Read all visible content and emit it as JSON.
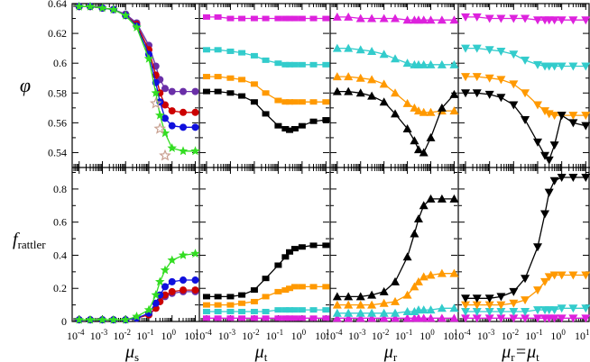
{
  "figure": {
    "ylabel_top": "φ",
    "ylabel_bottom_main": "f",
    "ylabel_bottom_sub": "rattler",
    "xlabels": [
      {
        "main": "μ",
        "sub": "s",
        "suffix": ""
      },
      {
        "main": "μ",
        "sub": "t",
        "suffix": ""
      },
      {
        "main": "μ",
        "sub": "r",
        "suffix": ""
      },
      {
        "main": "μ",
        "sub": "r",
        "suffix": "=μ",
        "sub2": "t"
      }
    ],
    "xtick_labels": [
      "10-4",
      "10-3",
      "10-2",
      "10-1",
      "100",
      "101"
    ],
    "ytick_top": [
      "0.54",
      "0.56",
      "0.58",
      "0.6",
      "0.62",
      "0.64"
    ],
    "ytick_bottom": [
      "0",
      "0.2",
      "0.4",
      "0.6",
      "0.8"
    ]
  },
  "chart_data": {
    "type": "line",
    "xscale": "log",
    "xlim": [
      5e-05,
      15
    ],
    "x": [
      0.0001,
      0.0003,
      0.001,
      0.003,
      0.01,
      0.03,
      0.1,
      0.2,
      0.3,
      0.5,
      1,
      3,
      10
    ],
    "colors": {
      "purple": "#6a2fa8",
      "red": "#cc0000",
      "blue": "#1010dd",
      "green": "#33dd22",
      "black": "#000000",
      "orange": "#ff9900",
      "cyan": "#33cccc",
      "magenta": "#dd22dd",
      "tan": "#c8a090"
    },
    "panels": [
      {
        "top": {
          "ylim": [
            0.53,
            0.64
          ],
          "series": [
            {
              "color": "purple",
              "marker": "circle",
              "values": [
                0.638,
                0.638,
                0.637,
                0.636,
                0.633,
                0.627,
                0.612,
                0.598,
                0.589,
                0.583,
                0.581,
                0.581,
                0.581
              ]
            },
            {
              "color": "red",
              "marker": "circle",
              "values": [
                0.638,
                0.638,
                0.637,
                0.636,
                0.632,
                0.626,
                0.609,
                0.592,
                0.58,
                0.572,
                0.568,
                0.567,
                0.567
              ]
            },
            {
              "color": "blue",
              "marker": "circle",
              "values": [
                0.638,
                0.638,
                0.637,
                0.636,
                0.632,
                0.625,
                0.606,
                0.587,
                0.574,
                0.563,
                0.558,
                0.557,
                0.557
              ]
            },
            {
              "color": "green",
              "marker": "star",
              "values": [
                0.638,
                0.638,
                0.637,
                0.636,
                0.632,
                0.624,
                0.603,
                0.58,
                0.565,
                0.553,
                0.543,
                0.541,
                0.541
              ]
            },
            {
              "color": "tan",
              "marker": "star-open",
              "values": [
                null,
                null,
                null,
                null,
                null,
                null,
                null,
                0.573,
                0.556,
                0.538,
                null,
                null,
                null
              ]
            }
          ]
        },
        "bottom": {
          "ylim": [
            0,
            0.93
          ],
          "series": [
            {
              "color": "purple",
              "marker": "circle",
              "values": [
                0.01,
                0.01,
                0.01,
                0.01,
                0.01,
                0.02,
                0.04,
                0.08,
                0.12,
                0.15,
                0.17,
                0.18,
                0.18
              ]
            },
            {
              "color": "red",
              "marker": "circle",
              "values": [
                0.01,
                0.01,
                0.01,
                0.01,
                0.01,
                0.02,
                0.04,
                0.08,
                0.12,
                0.16,
                0.18,
                0.19,
                0.19
              ]
            },
            {
              "color": "blue",
              "marker": "circle",
              "values": [
                0.01,
                0.01,
                0.01,
                0.01,
                0.01,
                0.02,
                0.05,
                0.11,
                0.16,
                0.21,
                0.24,
                0.25,
                0.25
              ]
            },
            {
              "color": "green",
              "marker": "star",
              "values": [
                0.01,
                0.01,
                0.01,
                0.01,
                0.01,
                0.03,
                0.07,
                0.16,
                0.24,
                0.31,
                0.37,
                0.4,
                0.41
              ]
            }
          ]
        }
      },
      {
        "top": {
          "ylim": [
            0.53,
            0.64
          ],
          "series": [
            {
              "color": "magenta",
              "marker": "square",
              "values": [
                0.631,
                0.631,
                0.63,
                0.63,
                0.63,
                0.63,
                0.63,
                0.63,
                0.63,
                0.63,
                0.63,
                0.63,
                0.63
              ]
            },
            {
              "color": "cyan",
              "marker": "square",
              "values": [
                0.609,
                0.609,
                0.608,
                0.607,
                0.605,
                0.602,
                0.6,
                0.599,
                0.599,
                0.599,
                0.599,
                0.599,
                0.599
              ]
            },
            {
              "color": "orange",
              "marker": "square",
              "values": [
                0.591,
                0.591,
                0.59,
                0.589,
                0.586,
                0.58,
                0.575,
                0.574,
                0.574,
                0.574,
                0.574,
                0.574,
                0.574
              ]
            },
            {
              "color": "black",
              "marker": "square",
              "values": [
                0.581,
                0.581,
                0.58,
                0.578,
                0.574,
                0.566,
                0.558,
                0.556,
                0.555,
                0.556,
                0.558,
                0.561,
                0.562
              ]
            }
          ]
        },
        "bottom": {
          "ylim": [
            0,
            0.93
          ],
          "series": [
            {
              "color": "magenta",
              "marker": "square",
              "values": [
                0.02,
                0.02,
                0.02,
                0.02,
                0.02,
                0.02,
                0.02,
                0.02,
                0.02,
                0.02,
                0.02,
                0.02,
                0.02
              ]
            },
            {
              "color": "cyan",
              "marker": "square",
              "values": [
                0.06,
                0.06,
                0.06,
                0.06,
                0.06,
                0.06,
                0.07,
                0.07,
                0.07,
                0.07,
                0.07,
                0.07,
                0.07
              ]
            },
            {
              "color": "orange",
              "marker": "square",
              "values": [
                0.1,
                0.1,
                0.1,
                0.11,
                0.12,
                0.15,
                0.18,
                0.19,
                0.2,
                0.21,
                0.21,
                0.21,
                0.21
              ]
            },
            {
              "color": "black",
              "marker": "square",
              "values": [
                0.15,
                0.15,
                0.15,
                0.16,
                0.19,
                0.26,
                0.34,
                0.39,
                0.42,
                0.44,
                0.45,
                0.46,
                0.46
              ]
            }
          ]
        }
      },
      {
        "top": {
          "ylim": [
            0.53,
            0.64
          ],
          "series": [
            {
              "color": "magenta",
              "marker": "triangle-up",
              "values": [
                0.631,
                0.631,
                0.63,
                0.63,
                0.63,
                0.63,
                0.629,
                0.629,
                0.629,
                0.629,
                0.629,
                0.629,
                0.629
              ]
            },
            {
              "color": "cyan",
              "marker": "triangle-up",
              "values": [
                0.61,
                0.61,
                0.609,
                0.608,
                0.606,
                0.603,
                0.6,
                0.599,
                0.599,
                0.599,
                0.599,
                0.599,
                0.599
              ]
            },
            {
              "color": "orange",
              "marker": "triangle-up",
              "values": [
                0.591,
                0.591,
                0.59,
                0.589,
                0.586,
                0.58,
                0.573,
                0.57,
                0.568,
                0.567,
                0.567,
                0.568,
                0.568
              ]
            },
            {
              "color": "black",
              "marker": "triangle-up",
              "values": [
                0.581,
                0.581,
                0.58,
                0.578,
                0.574,
                0.566,
                0.556,
                0.548,
                0.542,
                0.54,
                0.55,
                0.57,
                0.579
              ]
            }
          ]
        },
        "bottom": {
          "ylim": [
            0,
            0.93
          ],
          "series": [
            {
              "color": "magenta",
              "marker": "triangle-up",
              "values": [
                0.02,
                0.02,
                0.02,
                0.02,
                0.02,
                0.02,
                0.02,
                0.02,
                0.02,
                0.02,
                0.02,
                0.02,
                0.02
              ]
            },
            {
              "color": "cyan",
              "marker": "triangle-up",
              "values": [
                0.05,
                0.05,
                0.05,
                0.05,
                0.05,
                0.05,
                0.06,
                0.06,
                0.07,
                0.07,
                0.07,
                0.08,
                0.08
              ]
            },
            {
              "color": "orange",
              "marker": "triangle-up",
              "values": [
                0.1,
                0.1,
                0.1,
                0.1,
                0.11,
                0.12,
                0.16,
                0.21,
                0.24,
                0.27,
                0.28,
                0.29,
                0.29
              ]
            },
            {
              "color": "black",
              "marker": "triangle-up",
              "values": [
                0.15,
                0.15,
                0.15,
                0.16,
                0.18,
                0.24,
                0.39,
                0.53,
                0.62,
                0.7,
                0.74,
                0.74,
                0.74
              ]
            }
          ]
        }
      },
      {
        "top": {
          "ylim": [
            0.53,
            0.64
          ],
          "series": [
            {
              "color": "magenta",
              "marker": "triangle-down",
              "values": [
                0.631,
                0.631,
                0.63,
                0.63,
                0.63,
                0.63,
                0.629,
                0.629,
                0.629,
                0.629,
                0.629,
                0.629,
                0.629
              ]
            },
            {
              "color": "cyan",
              "marker": "triangle-down",
              "values": [
                0.61,
                0.61,
                0.609,
                0.608,
                0.606,
                0.602,
                0.599,
                0.598,
                0.598,
                0.598,
                0.598,
                0.598,
                0.598
              ]
            },
            {
              "color": "orange",
              "marker": "triangle-down",
              "values": [
                0.591,
                0.591,
                0.59,
                0.589,
                0.586,
                0.58,
                0.572,
                0.568,
                0.566,
                0.565,
                0.565,
                0.565,
                0.565
              ]
            },
            {
              "color": "black",
              "marker": "triangle-down",
              "values": [
                0.58,
                0.58,
                0.579,
                0.577,
                0.572,
                0.562,
                0.547,
                0.538,
                0.535,
                0.545,
                0.565,
                0.56,
                0.558
              ]
            }
          ]
        },
        "bottom": {
          "ylim": [
            0,
            0.93
          ],
          "series": [
            {
              "color": "magenta",
              "marker": "triangle-down",
              "values": [
                0.02,
                0.02,
                0.02,
                0.02,
                0.02,
                0.02,
                0.02,
                0.02,
                0.02,
                0.02,
                0.02,
                0.02,
                0.02
              ]
            },
            {
              "color": "cyan",
              "marker": "triangle-down",
              "values": [
                0.06,
                0.06,
                0.06,
                0.06,
                0.06,
                0.06,
                0.07,
                0.07,
                0.07,
                0.07,
                0.08,
                0.08,
                0.08
              ]
            },
            {
              "color": "orange",
              "marker": "triangle-down",
              "values": [
                0.1,
                0.1,
                0.1,
                0.1,
                0.11,
                0.13,
                0.19,
                0.24,
                0.27,
                0.28,
                0.28,
                0.28,
                0.28
              ]
            },
            {
              "color": "black",
              "marker": "triangle-down",
              "values": [
                0.14,
                0.14,
                0.14,
                0.15,
                0.18,
                0.26,
                0.45,
                0.65,
                0.78,
                0.85,
                0.87,
                0.87,
                0.87
              ]
            }
          ]
        }
      }
    ]
  }
}
